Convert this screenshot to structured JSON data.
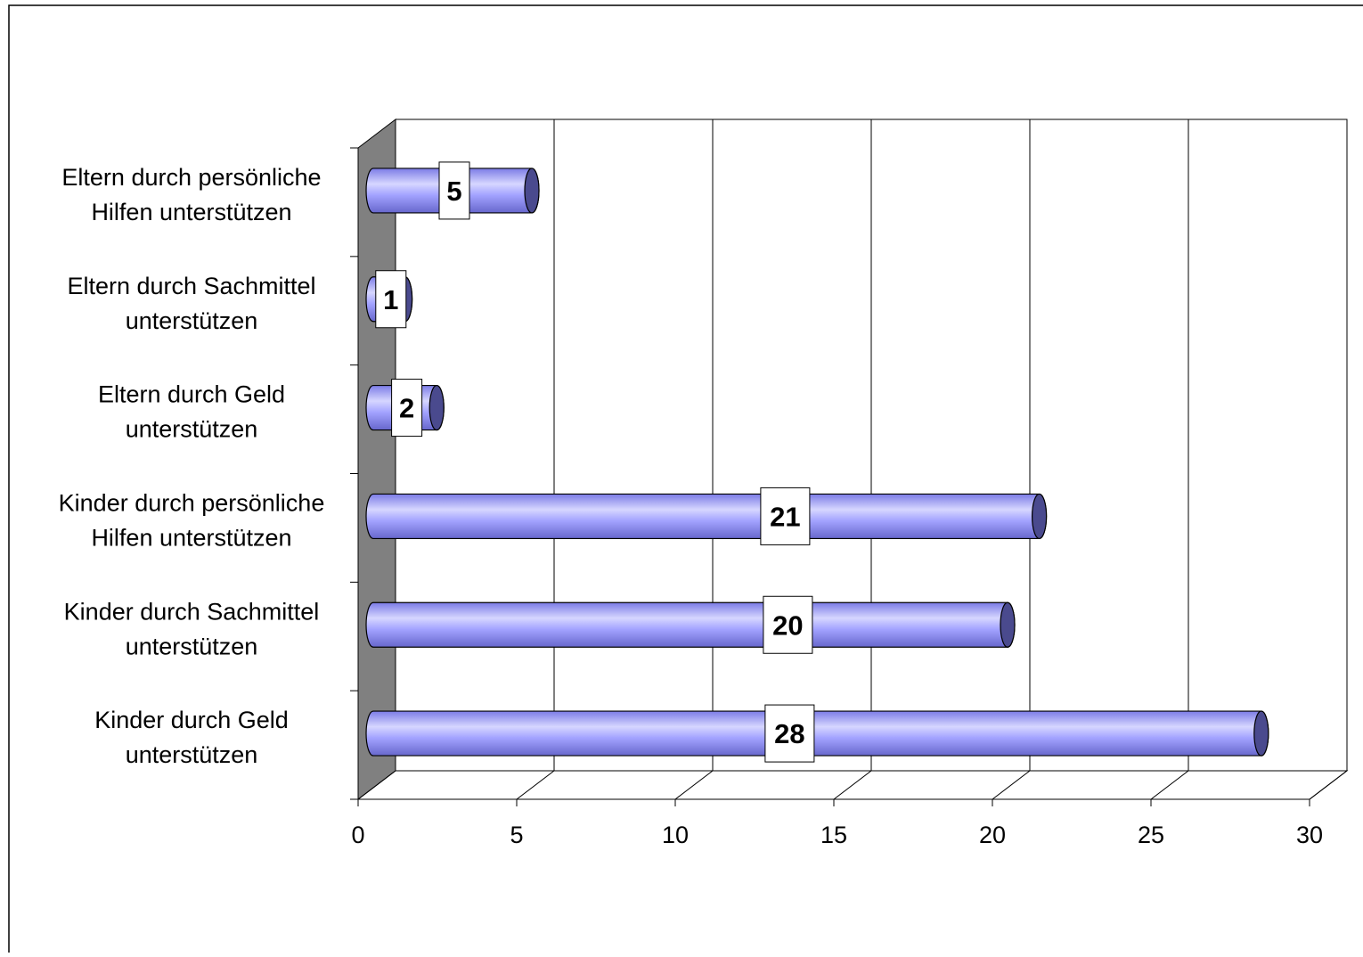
{
  "chart_data": {
    "type": "bar",
    "orientation": "horizontal",
    "style": "3d-cylinder",
    "categories": [
      [
        "Eltern durch persönliche",
        "Hilfen unterstützen"
      ],
      [
        "Eltern durch Sachmittel",
        "unterstützen"
      ],
      [
        "Eltern durch Geld",
        "unterstützen"
      ],
      [
        "Kinder durch persönliche",
        "Hilfen unterstützen"
      ],
      [
        "Kinder durch Sachmittel",
        "unterstützen"
      ],
      [
        "Kinder durch Geld",
        "unterstützen"
      ]
    ],
    "values": [
      5,
      1,
      2,
      21,
      20,
      28
    ],
    "data_labels": [
      "5",
      "1",
      "2",
      "21",
      "20",
      "28"
    ],
    "xlim": [
      0,
      30
    ],
    "x_ticks": [
      0,
      5,
      10,
      15,
      20,
      25,
      30
    ],
    "x_tick_labels": [
      "0",
      "5",
      "10",
      "15",
      "20",
      "25",
      "30"
    ],
    "grid": "vertical",
    "legend": "none",
    "title": "",
    "xlabel": "",
    "ylabel": "",
    "colors": {
      "bar_body": "#9999ff",
      "bar_highlight": "#d6d6ff",
      "bar_shadow": "#6b6bcf",
      "bar_end": "#4a4a8e",
      "side_wall": "#808080",
      "grid": "#000000"
    }
  }
}
